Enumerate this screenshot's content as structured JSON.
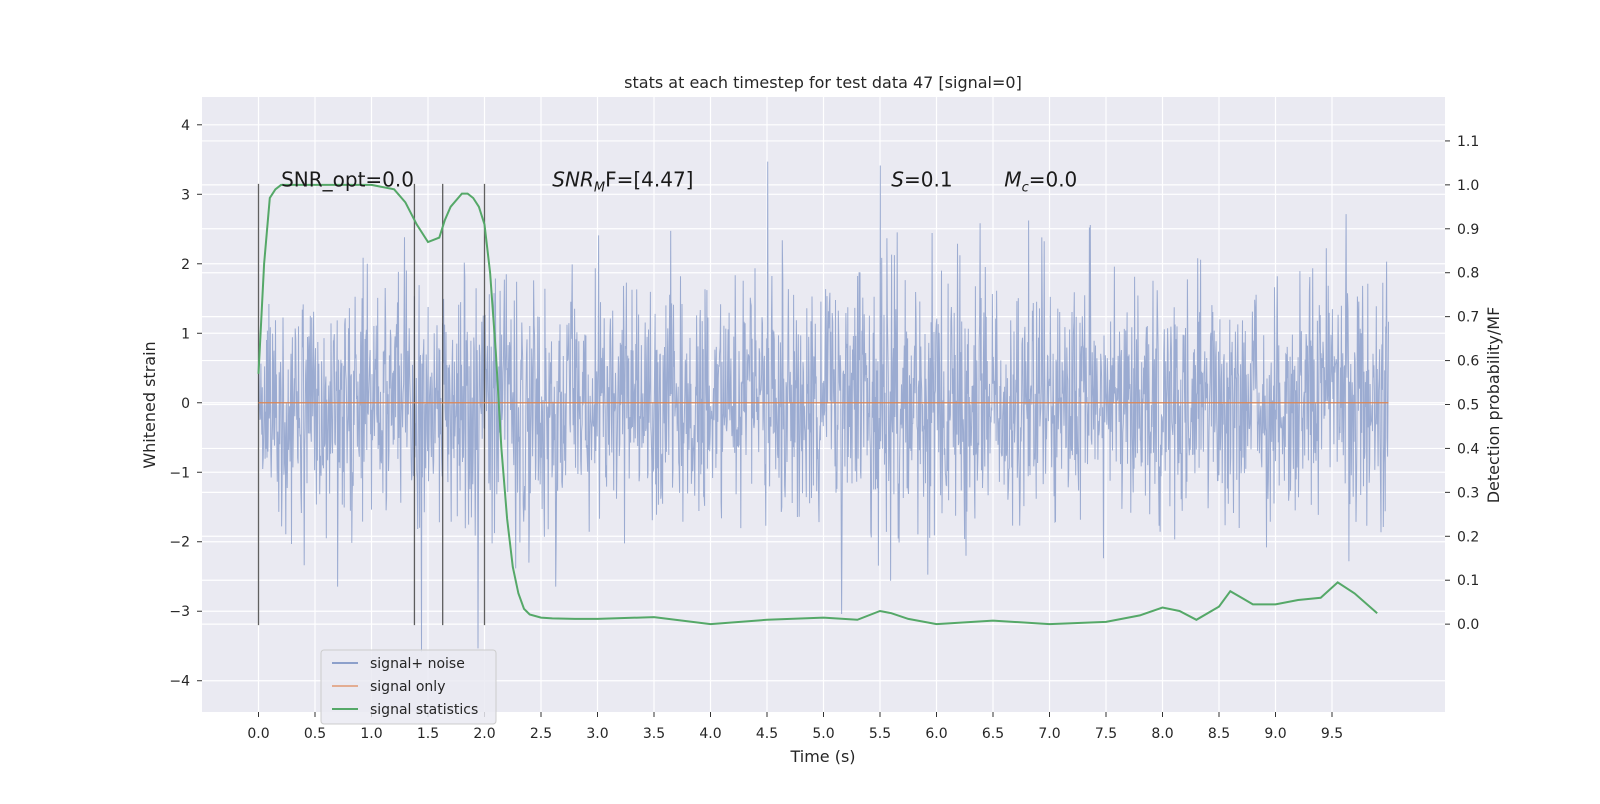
{
  "chart_data": {
    "type": "line",
    "title": "stats at each timestep for test data 47 [signal=0]",
    "xlabel": "Time (s)",
    "ylabel": "Whitened strain",
    "ylabel_right": "Detection probability/MF",
    "xlim": [
      -0.5,
      10.5
    ],
    "ylim": [
      -4.45,
      4.4
    ],
    "ylim_right": [
      -0.2,
      1.2
    ],
    "x_ticks": [
      0.0,
      0.5,
      1.0,
      1.5,
      2.0,
      2.5,
      3.0,
      3.5,
      4.0,
      4.5,
      5.0,
      5.5,
      6.0,
      6.5,
      7.0,
      7.5,
      8.0,
      8.5,
      9.0,
      9.5
    ],
    "x_tick_labels": [
      "0.0",
      "0.5",
      "1.0",
      "1.5",
      "2.0",
      "2.5",
      "3.0",
      "3.5",
      "4.0",
      "4.5",
      "5.0",
      "5.5",
      "6.0",
      "6.5",
      "7.0",
      "7.5",
      "8.0",
      "8.5",
      "9.0",
      "9.5"
    ],
    "y_ticks": [
      -4,
      -3,
      -2,
      -1,
      0,
      1,
      2,
      3,
      4
    ],
    "y_tick_labels": [
      "−4",
      "−3",
      "−2",
      "−1",
      "0",
      "1",
      "2",
      "3",
      "4"
    ],
    "y_ticks_right": [
      0.0,
      0.1,
      0.2,
      0.3,
      0.4,
      0.5,
      0.6,
      0.7,
      0.8,
      0.9,
      1.0,
      1.1
    ],
    "y_tick_labels_right": [
      "0.0",
      "0.1",
      "0.2",
      "0.3",
      "0.4",
      "0.5",
      "0.6",
      "0.7",
      "0.8",
      "0.9",
      "1.0",
      "1.1"
    ],
    "grid": true,
    "legend_position": "lower-left",
    "series": [
      {
        "name": "signal+ noise",
        "color": "#8da0cb",
        "axis": "left",
        "description_range": [
          -4.05,
          4.0
        ],
        "x_range": [
          0.0,
          10.0
        ]
      },
      {
        "name": "signal only",
        "color": "#dd8452",
        "axis": "left",
        "x": [
          0.0,
          10.0
        ],
        "y": [
          0.0,
          0.0
        ]
      },
      {
        "name": "signal statistics",
        "color": "#55a868",
        "axis": "right",
        "x": [
          0.0,
          0.05,
          0.1,
          0.15,
          0.2,
          0.3,
          0.5,
          0.8,
          1.0,
          1.2,
          1.3,
          1.4,
          1.5,
          1.6,
          1.65,
          1.7,
          1.8,
          1.85,
          1.9,
          1.95,
          2.0,
          2.05,
          2.1,
          2.15,
          2.2,
          2.25,
          2.3,
          2.35,
          2.4,
          2.5,
          2.6,
          2.8,
          3.0,
          3.5,
          4.0,
          4.5,
          5.0,
          5.3,
          5.5,
          5.6,
          5.75,
          6.0,
          6.5,
          7.0,
          7.5,
          7.8,
          8.0,
          8.15,
          8.3,
          8.5,
          8.6,
          8.7,
          8.8,
          9.0,
          9.2,
          9.4,
          9.55,
          9.7,
          9.9
        ],
        "y": [
          0.57,
          0.82,
          0.97,
          0.99,
          1.0,
          1.0,
          1.0,
          1.0,
          1.0,
          0.99,
          0.96,
          0.91,
          0.87,
          0.88,
          0.92,
          0.95,
          0.98,
          0.98,
          0.97,
          0.95,
          0.91,
          0.8,
          0.62,
          0.4,
          0.24,
          0.13,
          0.07,
          0.035,
          0.022,
          0.015,
          0.013,
          0.012,
          0.012,
          0.016,
          0.0,
          0.01,
          0.015,
          0.01,
          0.03,
          0.025,
          0.012,
          0.0,
          0.008,
          0.0,
          0.005,
          0.02,
          0.038,
          0.03,
          0.01,
          0.04,
          0.075,
          0.06,
          0.045,
          0.045,
          0.055,
          0.06,
          0.095,
          0.07,
          0.025
        ]
      }
    ],
    "vertical_markers": [
      0.0,
      1.38,
      1.63,
      2.0
    ],
    "annotations": [
      {
        "text": "SNR_opt=0.0",
        "x": 0.2,
        "y": 3.2
      },
      {
        "text_main": "SNR",
        "text_sub": "M",
        "text_rest": "F=[4.47]",
        "x": 2.6,
        "y": 3.2
      },
      {
        "text_main": "S",
        "text_sub": "",
        "text_rest": "=0.1",
        "x": 5.6,
        "y": 3.2
      },
      {
        "text_main": "M",
        "text_sub": "c",
        "text_rest": "=0.0",
        "x": 6.6,
        "y": 3.2
      }
    ]
  }
}
